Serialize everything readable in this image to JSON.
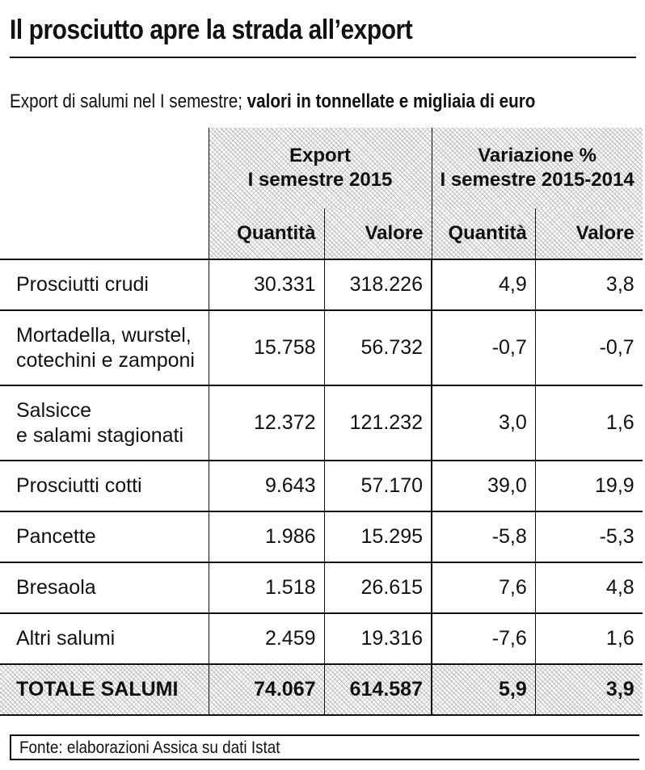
{
  "title": "Il prosciutto apre la strada all’export",
  "subtitle": {
    "regular": "Export di salumi nel I semestre;",
    "bold": "valori in tonnellate e migliaia di euro"
  },
  "source": "Fonte: elaborazioni Assica su dati Istat",
  "chart_data": {
    "type": "table",
    "group_headers": [
      {
        "line1": "Export",
        "line2": "I semestre 2015"
      },
      {
        "line1": "Variazione %",
        "line2": "I semestre 2015-2014"
      }
    ],
    "columns": [
      "Quantità",
      "Valore",
      "Quantità",
      "Valore"
    ],
    "rows": [
      {
        "label": [
          "Prosciutti crudi"
        ],
        "values": [
          "30.331",
          "318.226",
          "4,9",
          "3,8"
        ]
      },
      {
        "label": [
          "Mortadella, wurstel,",
          "cotechini e zamponi"
        ],
        "values": [
          "15.758",
          "56.732",
          "-0,7",
          "-0,7"
        ]
      },
      {
        "label": [
          "Salsicce",
          "e salami stagionati"
        ],
        "values": [
          "12.372",
          "121.232",
          "3,0",
          "1,6"
        ]
      },
      {
        "label": [
          "Prosciutti cotti"
        ],
        "values": [
          "9.643",
          "57.170",
          "39,0",
          "19,9"
        ]
      },
      {
        "label": [
          "Pancette"
        ],
        "values": [
          "1.986",
          "15.295",
          "-5,8",
          "-5,3"
        ]
      },
      {
        "label": [
          "Bresaola"
        ],
        "values": [
          "1.518",
          "26.615",
          "7,6",
          "4,8"
        ]
      },
      {
        "label": [
          "Altri salumi"
        ],
        "values": [
          "2.459",
          "19.316",
          "-7,6",
          "1,6"
        ]
      }
    ],
    "total": {
      "label": "TOTALE SALUMI",
      "values": [
        "74.067",
        "614.587",
        "5,9",
        "3,9"
      ]
    }
  }
}
